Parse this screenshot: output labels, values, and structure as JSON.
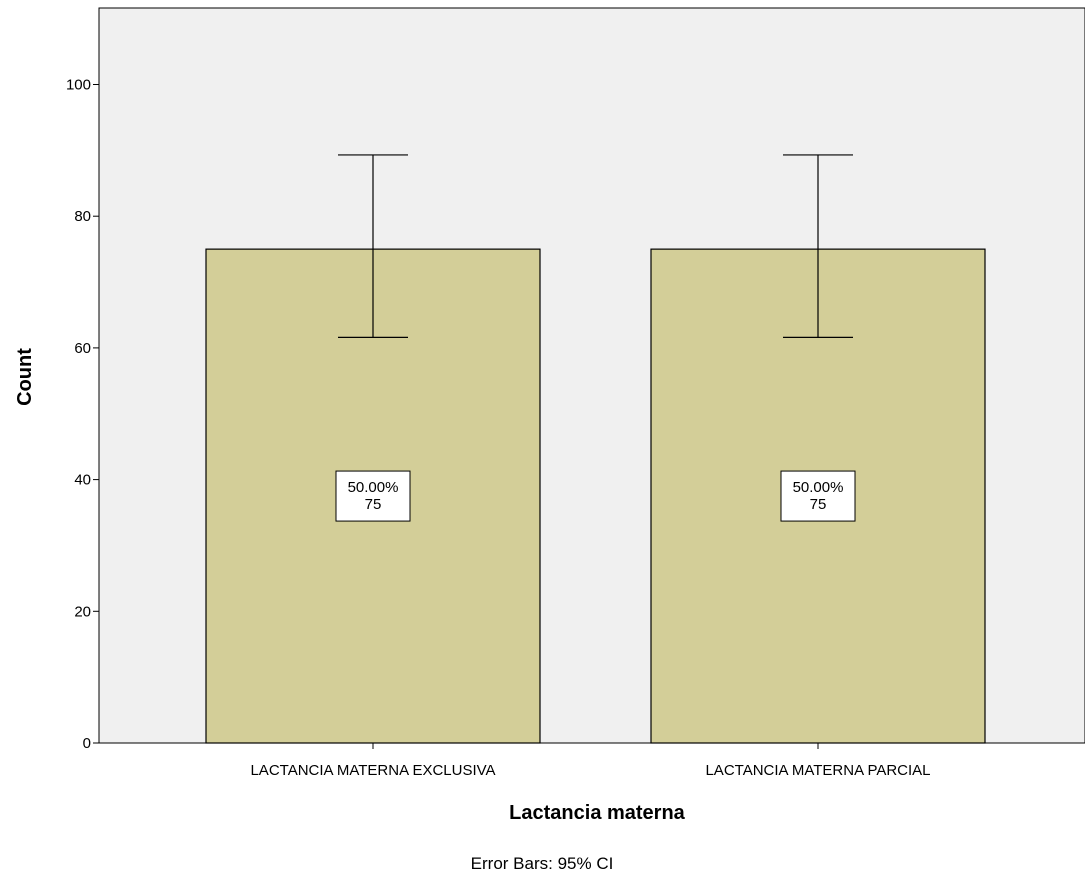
{
  "chart_data": {
    "type": "bar",
    "categories": [
      "LACTANCIA MATERNA EXCLUSIVA",
      "LACTANCIA MATERNA PARCIAL"
    ],
    "values": [
      75,
      75
    ],
    "percent_labels": [
      "50.00%",
      "50.00%"
    ],
    "count_labels": [
      "75",
      "75"
    ],
    "error_bars": [
      {
        "lower": 61.6,
        "upper": 89.3
      },
      {
        "lower": 61.6,
        "upper": 89.3
      }
    ],
    "xlabel": "Lactancia materna",
    "ylabel": "Count",
    "ylim": [
      0,
      110
    ],
    "yticks": [
      0,
      20,
      40,
      60,
      80,
      100
    ],
    "footnote": "Error Bars: 95% CI",
    "grid": false,
    "colors": {
      "bar_fill": "#d3ce98",
      "plot_background": "#f0f0f0",
      "axis": "#000000"
    }
  }
}
